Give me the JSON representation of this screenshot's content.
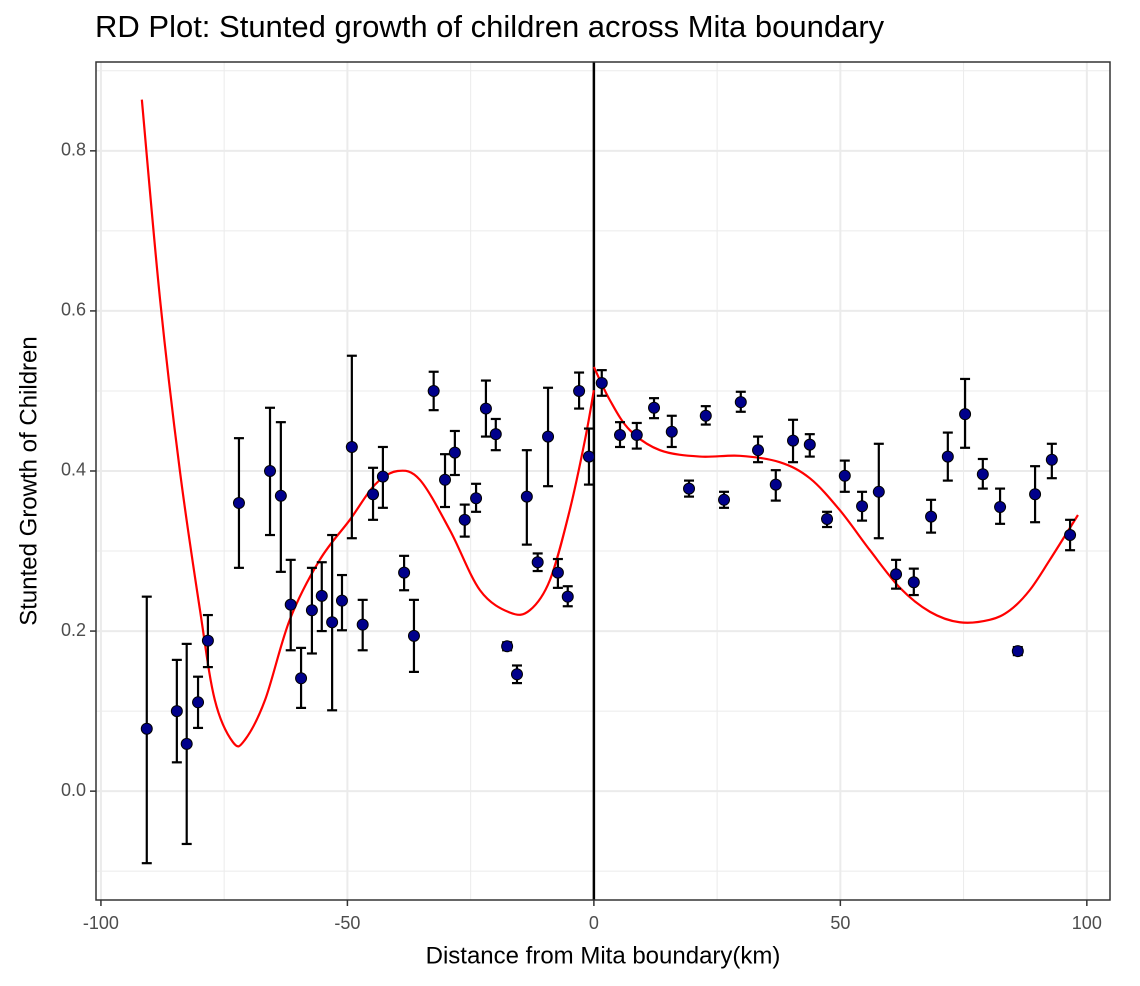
{
  "chart_data": {
    "type": "scatter",
    "title": "RD Plot: Stunted growth of children across Mita boundary",
    "x_label": "Distance from Mita boundary(km)",
    "y_label": "Stunted Growth of Children",
    "xlim": [
      -101,
      104.7
    ],
    "ylim": [
      -0.136,
      0.911
    ],
    "xticks": [
      -100,
      -50,
      0,
      50,
      100
    ],
    "yticks": [
      {
        "value": 0,
        "label": "0.0"
      },
      0.2,
      0.4,
      0.6,
      0.8
    ],
    "grid": true,
    "vline": 0,
    "points": {
      "color": "#00008b",
      "x": [
        -90.7,
        -84.6,
        -82.6,
        -80.3,
        -78.3,
        -72.0,
        -65.7,
        -63.5,
        -61.5,
        -59.4,
        -57.2,
        -55.2,
        -53.1,
        -51.1,
        -49.1,
        -46.9,
        -44.8,
        -42.8,
        -38.5,
        -36.5,
        -32.5,
        -30.2,
        -28.2,
        -26.2,
        -23.9,
        -21.9,
        -19.9,
        -17.6,
        -15.6,
        -13.6,
        -11.4,
        -9.3,
        -7.3,
        -5.3,
        -3.0,
        -1.0,
        1.6,
        5.3,
        8.7,
        12.2,
        15.8,
        19.3,
        22.7,
        26.4,
        29.8,
        33.3,
        36.9,
        40.4,
        43.8,
        47.3,
        50.9,
        54.4,
        57.8,
        61.3,
        64.9,
        68.4,
        71.8,
        75.3,
        78.9,
        82.4,
        86.0,
        89.5,
        92.9,
        96.6
      ],
      "values": [
        0.078,
        0.1,
        0.059,
        0.111,
        0.188,
        0.36,
        0.4,
        0.369,
        0.233,
        0.141,
        0.226,
        0.244,
        0.211,
        0.238,
        0.43,
        0.208,
        0.371,
        0.393,
        0.273,
        0.194,
        0.5,
        0.389,
        0.423,
        0.339,
        0.366,
        0.478,
        0.446,
        0.181,
        0.146,
        0.368,
        0.286,
        0.443,
        0.273,
        0.243,
        0.5,
        0.418,
        0.51,
        0.445,
        0.445,
        0.479,
        0.449,
        0.378,
        0.469,
        0.364,
        0.486,
        0.426,
        0.383,
        0.438,
        0.433,
        0.34,
        0.394,
        0.356,
        0.374,
        0.271,
        0.261,
        0.343,
        0.418,
        0.471,
        0.396,
        0.355,
        0.175,
        0.371,
        0.414,
        0.32
      ],
      "lower": [
        -0.09,
        0.036,
        -0.066,
        0.079,
        0.155,
        0.279,
        0.32,
        0.274,
        0.176,
        0.104,
        0.172,
        0.2,
        0.101,
        0.201,
        0.316,
        0.176,
        0.339,
        0.354,
        0.251,
        0.149,
        0.476,
        0.355,
        0.395,
        0.318,
        0.349,
        0.443,
        0.426,
        0.176,
        0.135,
        0.308,
        0.275,
        0.381,
        0.254,
        0.231,
        0.478,
        0.383,
        0.494,
        0.43,
        0.428,
        0.466,
        0.43,
        0.368,
        0.458,
        0.354,
        0.474,
        0.411,
        0.363,
        0.411,
        0.418,
        0.33,
        0.374,
        0.338,
        0.316,
        0.253,
        0.245,
        0.323,
        0.388,
        0.429,
        0.378,
        0.334,
        0.17,
        0.336,
        0.391,
        0.301
      ],
      "upper": [
        0.243,
        0.164,
        0.184,
        0.143,
        0.22,
        0.441,
        0.479,
        0.461,
        0.289,
        0.179,
        0.279,
        0.286,
        0.32,
        0.27,
        0.544,
        0.239,
        0.404,
        0.43,
        0.294,
        0.239,
        0.524,
        0.421,
        0.45,
        0.358,
        0.384,
        0.513,
        0.465,
        0.186,
        0.157,
        0.426,
        0.297,
        0.504,
        0.29,
        0.256,
        0.523,
        0.453,
        0.526,
        0.461,
        0.46,
        0.491,
        0.469,
        0.388,
        0.481,
        0.374,
        0.499,
        0.443,
        0.401,
        0.464,
        0.446,
        0.349,
        0.413,
        0.374,
        0.434,
        0.289,
        0.278,
        0.364,
        0.448,
        0.515,
        0.415,
        0.378,
        0.18,
        0.406,
        0.434,
        0.339
      ]
    },
    "fit": [
      {
        "color": "#ff0000",
        "x": [
          -91.7,
          -88.0,
          -84.0,
          -79.9,
          -76.9,
          -73.2,
          -70.8,
          -66.7,
          -61.7,
          -55.6,
          -49.5,
          -44.4,
          -39.8,
          -35.3,
          -29.2,
          -23.1,
          -17.0,
          -13.0,
          -8.9,
          -4.9,
          -1.8,
          0
        ],
        "values": [
          0.864,
          0.614,
          0.401,
          0.226,
          0.114,
          0.061,
          0.064,
          0.114,
          0.214,
          0.289,
          0.339,
          0.383,
          0.4,
          0.389,
          0.326,
          0.251,
          0.223,
          0.226,
          0.264,
          0.351,
          0.439,
          0.501
        ]
      },
      {
        "color": "#ff0000",
        "x": [
          0,
          3.2,
          7.3,
          13.4,
          21.5,
          29.6,
          37.7,
          43.8,
          49.9,
          56.0,
          62.1,
          68.2,
          74.2,
          80.3,
          84.4,
          88.4,
          92.5,
          98.2
        ],
        "values": [
          0.53,
          0.489,
          0.451,
          0.426,
          0.418,
          0.419,
          0.411,
          0.391,
          0.351,
          0.301,
          0.254,
          0.224,
          0.211,
          0.214,
          0.226,
          0.251,
          0.289,
          0.345
        ]
      }
    ]
  }
}
